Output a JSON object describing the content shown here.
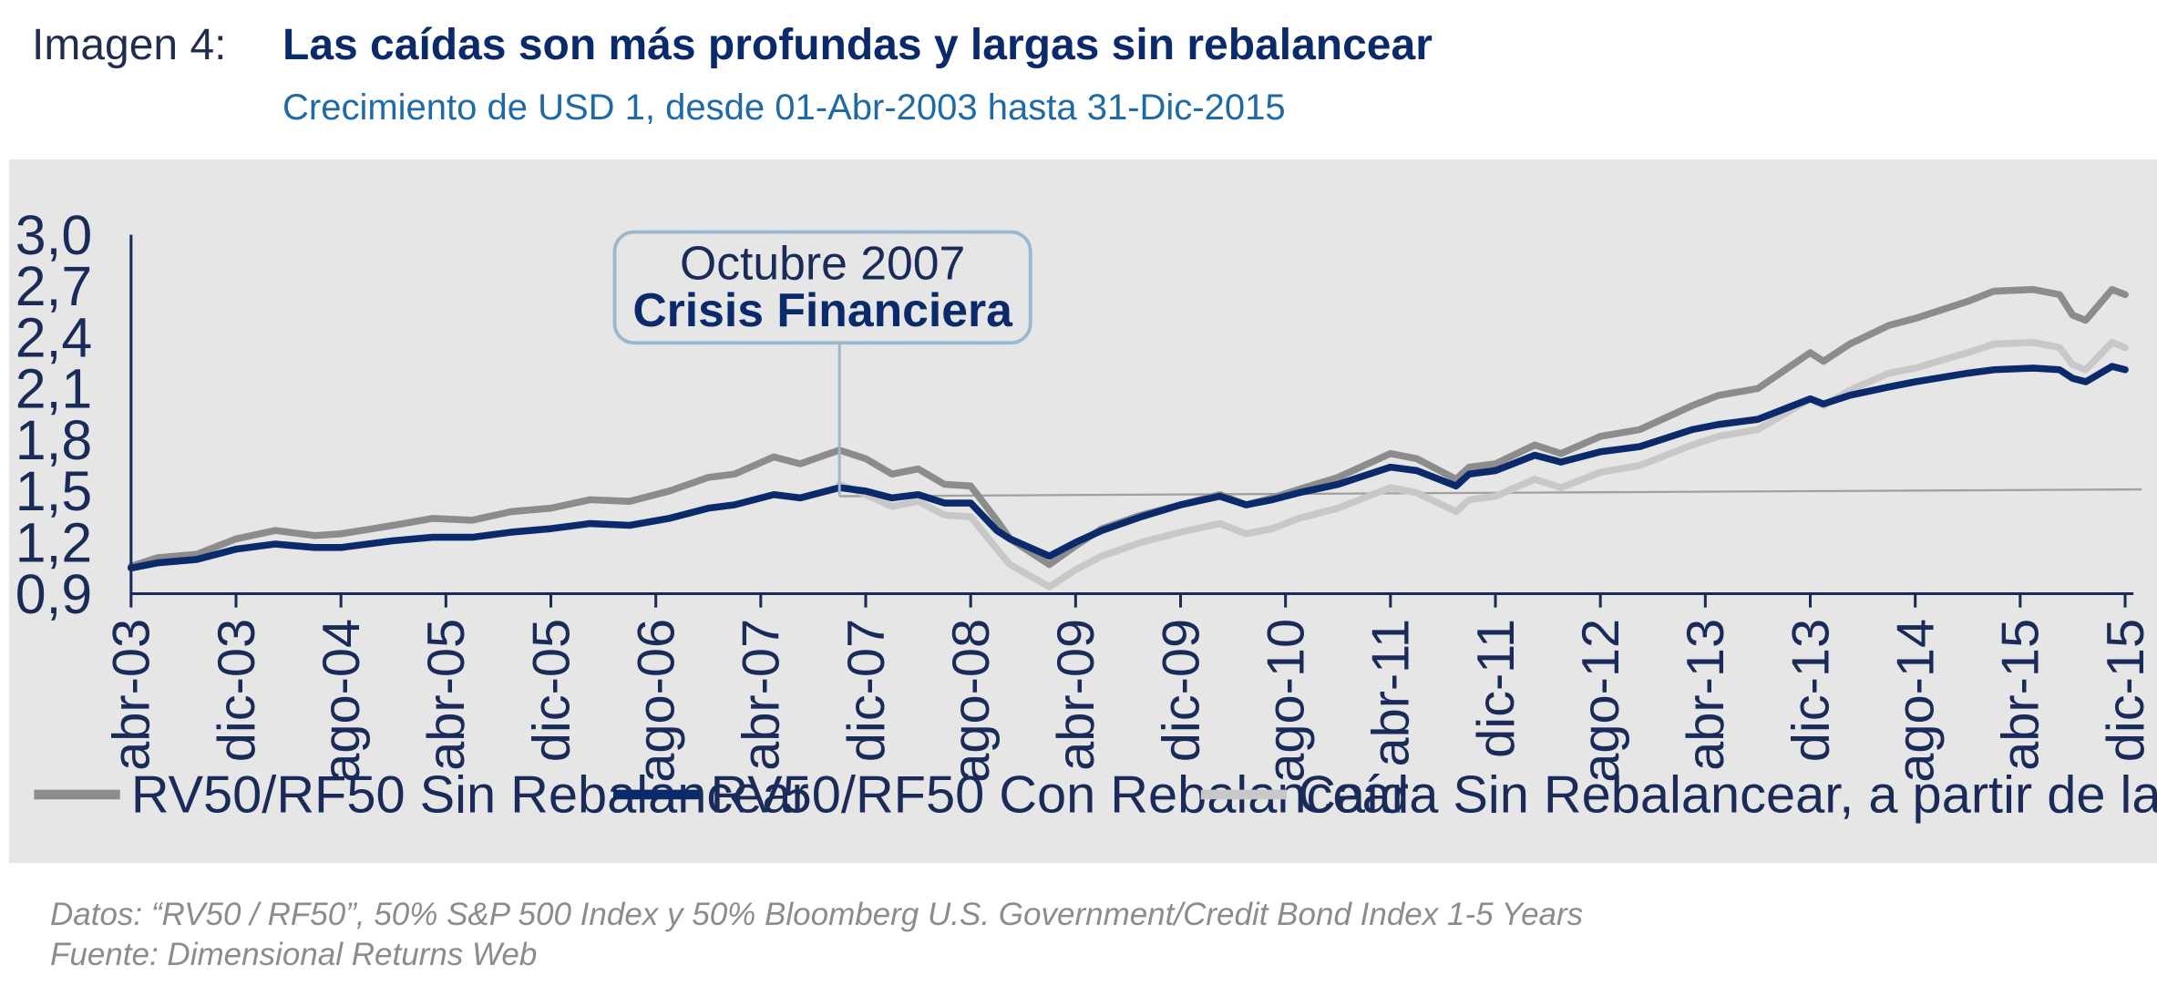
{
  "header": {
    "label": "Imagen 4:",
    "title": "Las caídas son más profundas y largas sin rebalancear",
    "subtitle": "Crecimiento de USD 1, desde 01-Abr-2003 hasta 31-Dic-2015"
  },
  "footer": {
    "data_note": "Datos: “RV50 / RF50”, 50% S&P 500 Index y 50% Bloomberg U.S. Government/Credit Bond Index 1-5 Years",
    "source_note": "Fuente: Dimensional Returns Web"
  },
  "chart_data": {
    "type": "line",
    "title": "Las caídas son más profundas y largas sin rebalancear",
    "subtitle": "Crecimiento de USD 1, desde 01-Abr-2003 hasta 31-Dic-2015",
    "xlabel": "",
    "ylabel": "",
    "ylim": [
      0.9,
      3.0
    ],
    "yticks": [
      "3,0",
      "2,7",
      "2,4",
      "2,1",
      "1,8",
      "1,5",
      "1,2",
      "0,9"
    ],
    "ytick_values": [
      3.0,
      2.7,
      2.4,
      2.1,
      1.8,
      1.5,
      1.2,
      0.9
    ],
    "xlim": [
      "2003-04",
      "2015-12"
    ],
    "xticks": [
      {
        "label": "abr-03",
        "date": "2003-04"
      },
      {
        "label": "dic-03",
        "date": "2003-12"
      },
      {
        "label": "ago-04",
        "date": "2004-08"
      },
      {
        "label": "abr-05",
        "date": "2005-04"
      },
      {
        "label": "dic-05",
        "date": "2005-12"
      },
      {
        "label": "ago-06",
        "date": "2006-08"
      },
      {
        "label": "abr-07",
        "date": "2007-04"
      },
      {
        "label": "dic-07",
        "date": "2007-12"
      },
      {
        "label": "ago-08",
        "date": "2008-08"
      },
      {
        "label": "abr-09",
        "date": "2009-04"
      },
      {
        "label": "dic-09",
        "date": "2009-12"
      },
      {
        "label": "ago-10",
        "date": "2010-08"
      },
      {
        "label": "abr-11",
        "date": "2011-04"
      },
      {
        "label": "dic-11",
        "date": "2011-12"
      },
      {
        "label": "ago-12",
        "date": "2012-08"
      },
      {
        "label": "abr-13",
        "date": "2013-04"
      },
      {
        "label": "dic-13",
        "date": "2013-12"
      },
      {
        "label": "ago-14",
        "date": "2014-08"
      },
      {
        "label": "abr-15",
        "date": "2015-04"
      },
      {
        "label": "dic-15",
        "date": "2015-12"
      }
    ],
    "grid": false,
    "legend_position": "bottom",
    "series": [
      {
        "name": "RV50/RF50 Sin Rebalancear",
        "color": "#8c8c8c",
        "points": [
          [
            "2003-04",
            1.06
          ],
          [
            "2003-06",
            1.11
          ],
          [
            "2003-09",
            1.13
          ],
          [
            "2003-12",
            1.22
          ],
          [
            "2004-03",
            1.27
          ],
          [
            "2004-06",
            1.24
          ],
          [
            "2004-08",
            1.25
          ],
          [
            "2004-12",
            1.3
          ],
          [
            "2005-03",
            1.34
          ],
          [
            "2005-06",
            1.33
          ],
          [
            "2005-09",
            1.38
          ],
          [
            "2005-12",
            1.4
          ],
          [
            "2006-03",
            1.45
          ],
          [
            "2006-06",
            1.44
          ],
          [
            "2006-09",
            1.5
          ],
          [
            "2006-12",
            1.58
          ],
          [
            "2007-02",
            1.6
          ],
          [
            "2007-05",
            1.7
          ],
          [
            "2007-07",
            1.66
          ],
          [
            "2007-10",
            1.74
          ],
          [
            "2007-12",
            1.69
          ],
          [
            "2008-02",
            1.6
          ],
          [
            "2008-04",
            1.63
          ],
          [
            "2008-06",
            1.54
          ],
          [
            "2008-08",
            1.53
          ],
          [
            "2008-10",
            1.33
          ],
          [
            "2008-11",
            1.22
          ],
          [
            "2009-02",
            1.07
          ],
          [
            "2009-04",
            1.18
          ],
          [
            "2009-06",
            1.28
          ],
          [
            "2009-09",
            1.36
          ],
          [
            "2009-12",
            1.42
          ],
          [
            "2010-03",
            1.48
          ],
          [
            "2010-05",
            1.42
          ],
          [
            "2010-07",
            1.46
          ],
          [
            "2010-09",
            1.51
          ],
          [
            "2010-12",
            1.58
          ],
          [
            "2011-04",
            1.72
          ],
          [
            "2011-06",
            1.69
          ],
          [
            "2011-09",
            1.57
          ],
          [
            "2011-10",
            1.64
          ],
          [
            "2011-12",
            1.66
          ],
          [
            "2012-03",
            1.77
          ],
          [
            "2012-05",
            1.72
          ],
          [
            "2012-08",
            1.82
          ],
          [
            "2012-11",
            1.86
          ],
          [
            "2013-03",
            2.0
          ],
          [
            "2013-05",
            2.06
          ],
          [
            "2013-08",
            2.1
          ],
          [
            "2013-12",
            2.31
          ],
          [
            "2014-01",
            2.26
          ],
          [
            "2014-03",
            2.36
          ],
          [
            "2014-06",
            2.47
          ],
          [
            "2014-08",
            2.51
          ],
          [
            "2014-12",
            2.61
          ],
          [
            "2015-02",
            2.67
          ],
          [
            "2015-05",
            2.68
          ],
          [
            "2015-07",
            2.65
          ],
          [
            "2015-08",
            2.53
          ],
          [
            "2015-09",
            2.5
          ],
          [
            "2015-11",
            2.68
          ],
          [
            "2015-12",
            2.65
          ]
        ]
      },
      {
        "name": "RV50/RF50 Con Rebalancear",
        "color": "#0b2a6b",
        "points": [
          [
            "2003-04",
            1.05
          ],
          [
            "2003-06",
            1.08
          ],
          [
            "2003-09",
            1.1
          ],
          [
            "2003-12",
            1.16
          ],
          [
            "2004-03",
            1.19
          ],
          [
            "2004-06",
            1.17
          ],
          [
            "2004-08",
            1.17
          ],
          [
            "2004-12",
            1.21
          ],
          [
            "2005-03",
            1.23
          ],
          [
            "2005-06",
            1.23
          ],
          [
            "2005-09",
            1.26
          ],
          [
            "2005-12",
            1.28
          ],
          [
            "2006-03",
            1.31
          ],
          [
            "2006-06",
            1.3
          ],
          [
            "2006-09",
            1.34
          ],
          [
            "2006-12",
            1.4
          ],
          [
            "2007-02",
            1.42
          ],
          [
            "2007-05",
            1.48
          ],
          [
            "2007-07",
            1.46
          ],
          [
            "2007-10",
            1.52
          ],
          [
            "2007-12",
            1.5
          ],
          [
            "2008-02",
            1.46
          ],
          [
            "2008-04",
            1.48
          ],
          [
            "2008-06",
            1.43
          ],
          [
            "2008-08",
            1.43
          ],
          [
            "2008-10",
            1.27
          ],
          [
            "2008-11",
            1.22
          ],
          [
            "2009-02",
            1.12
          ],
          [
            "2009-04",
            1.2
          ],
          [
            "2009-06",
            1.27
          ],
          [
            "2009-09",
            1.35
          ],
          [
            "2009-12",
            1.42
          ],
          [
            "2010-03",
            1.47
          ],
          [
            "2010-05",
            1.42
          ],
          [
            "2010-07",
            1.45
          ],
          [
            "2010-09",
            1.49
          ],
          [
            "2010-12",
            1.54
          ],
          [
            "2011-04",
            1.64
          ],
          [
            "2011-06",
            1.62
          ],
          [
            "2011-09",
            1.53
          ],
          [
            "2011-10",
            1.6
          ],
          [
            "2011-12",
            1.62
          ],
          [
            "2012-03",
            1.71
          ],
          [
            "2012-05",
            1.67
          ],
          [
            "2012-08",
            1.73
          ],
          [
            "2012-11",
            1.76
          ],
          [
            "2013-03",
            1.86
          ],
          [
            "2013-05",
            1.89
          ],
          [
            "2013-08",
            1.92
          ],
          [
            "2013-12",
            2.04
          ],
          [
            "2014-01",
            2.01
          ],
          [
            "2014-03",
            2.06
          ],
          [
            "2014-06",
            2.11
          ],
          [
            "2014-08",
            2.14
          ],
          [
            "2014-12",
            2.19
          ],
          [
            "2015-02",
            2.21
          ],
          [
            "2015-05",
            2.22
          ],
          [
            "2015-07",
            2.21
          ],
          [
            "2015-08",
            2.16
          ],
          [
            "2015-09",
            2.14
          ],
          [
            "2015-11",
            2.23
          ],
          [
            "2015-12",
            2.21
          ]
        ]
      },
      {
        "name": "Caída Sin Rebalancear, a partir de la crisis financiera",
        "color": "#c8c8c8",
        "points": [
          [
            "2007-10",
            1.54
          ],
          [
            "2007-12",
            1.48
          ],
          [
            "2008-02",
            1.41
          ],
          [
            "2008-04",
            1.44
          ],
          [
            "2008-06",
            1.36
          ],
          [
            "2008-08",
            1.35
          ],
          [
            "2008-10",
            1.16
          ],
          [
            "2008-11",
            1.07
          ],
          [
            "2009-02",
            0.94
          ],
          [
            "2009-04",
            1.04
          ],
          [
            "2009-06",
            1.12
          ],
          [
            "2009-09",
            1.2
          ],
          [
            "2009-12",
            1.26
          ],
          [
            "2010-03",
            1.31
          ],
          [
            "2010-05",
            1.25
          ],
          [
            "2010-07",
            1.28
          ],
          [
            "2010-09",
            1.34
          ],
          [
            "2010-12",
            1.4
          ],
          [
            "2011-04",
            1.52
          ],
          [
            "2011-06",
            1.49
          ],
          [
            "2011-09",
            1.38
          ],
          [
            "2011-10",
            1.45
          ],
          [
            "2011-12",
            1.47
          ],
          [
            "2012-03",
            1.57
          ],
          [
            "2012-05",
            1.52
          ],
          [
            "2012-08",
            1.61
          ],
          [
            "2012-11",
            1.65
          ],
          [
            "2013-03",
            1.77
          ],
          [
            "2013-05",
            1.82
          ],
          [
            "2013-08",
            1.86
          ],
          [
            "2013-12",
            2.04
          ],
          [
            "2014-01",
            2.0
          ],
          [
            "2014-03",
            2.09
          ],
          [
            "2014-06",
            2.19
          ],
          [
            "2014-08",
            2.22
          ],
          [
            "2014-12",
            2.31
          ],
          [
            "2015-02",
            2.36
          ],
          [
            "2015-05",
            2.37
          ],
          [
            "2015-07",
            2.34
          ],
          [
            "2015-08",
            2.24
          ],
          [
            "2015-09",
            2.21
          ],
          [
            "2015-11",
            2.37
          ],
          [
            "2015-12",
            2.34
          ]
        ]
      }
    ],
    "reference_line": {
      "from": [
        "2007-10",
        1.47
      ],
      "to": [
        "2015-12",
        1.51
      ],
      "color": "#a0a0a0"
    },
    "annotation": {
      "line1": "Octubre 2007",
      "line2": "Crisis Financiera",
      "date": "2007-10"
    }
  }
}
